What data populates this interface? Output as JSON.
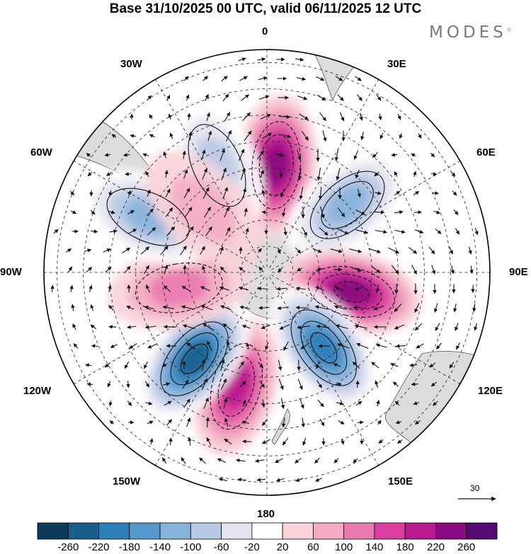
{
  "title": "Base 31/10/2025 00 UTC, valid 06/11/2025 12 UTC",
  "brand": "MODES",
  "brand_mark": "©",
  "longitude_labels": {
    "lon_0": "0",
    "lon_30e": "30E",
    "lon_60e": "60E",
    "lon_90e": "90E",
    "lon_120e": "120E",
    "lon_150e": "150E",
    "lon_180": "180",
    "lon_150w": "150W",
    "lon_120w": "120W",
    "lon_90w": "90W",
    "lon_60w": "60W",
    "lon_30w": "30W"
  },
  "reference_vector": {
    "value": "30"
  },
  "colorbar": {
    "ticks": [
      "-260",
      "-220",
      "-180",
      "-140",
      "-100",
      "-60",
      "-20",
      "20",
      "60",
      "100",
      "140",
      "180",
      "220",
      "260"
    ],
    "colors": [
      "#0e3a5a",
      "#1a5f8c",
      "#2e7fb7",
      "#5599cc",
      "#86b3da",
      "#b8c8e4",
      "#e3e3f1",
      "#ffffff",
      "#f8d3d8",
      "#f3adc2",
      "#ea7bb0",
      "#da3f9f",
      "#b91a8f",
      "#8a0a80",
      "#550a73"
    ]
  },
  "map_anomalies": [
    {
      "name": "anom-pos-0",
      "lon": 5,
      "lat": -49,
      "value": 200
    },
    {
      "name": "anom-neg-45e",
      "lon": 50,
      "lat": -50,
      "value": -150
    },
    {
      "name": "anom-pos-100e",
      "lon": 103,
      "lat": -57,
      "value": 210
    },
    {
      "name": "anom-neg-140e",
      "lon": 143,
      "lat": -54,
      "value": -220
    },
    {
      "name": "anom-pos-165w",
      "lon": -165,
      "lat": -45,
      "value": 180
    },
    {
      "name": "anom-neg-140w",
      "lon": -140,
      "lat": -47,
      "value": -250
    },
    {
      "name": "anom-pos-100w",
      "lon": -100,
      "lat": -56,
      "value": 100
    },
    {
      "name": "anom-neg-65w",
      "lon": -65,
      "lat": -40,
      "value": -120
    },
    {
      "name": "anom-neg-25w",
      "lon": -25,
      "lat": -45,
      "value": -110
    },
    {
      "name": "anom-pos-45w",
      "lon": -45,
      "lat": -56,
      "value": 60
    }
  ]
}
